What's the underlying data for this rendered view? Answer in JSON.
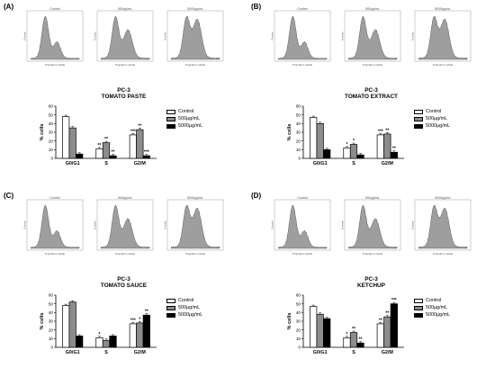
{
  "panels": [
    {
      "letter": "(A)",
      "title_line1": "PC-3",
      "title_line2": "TOMATO PASTE",
      "hist_labels": [
        "Control",
        "500µg/mL",
        "5000µg/mL"
      ],
      "hist_axis_y": "Events",
      "hist_axis_x": "Propidium iodide"
    },
    {
      "letter": "(B)",
      "title_line1": "PC-3",
      "title_line2": "TOMATO EXTRACT",
      "hist_labels": [
        "Control",
        "500µg/mL",
        "5000µg/mL"
      ],
      "hist_axis_y": "Events",
      "hist_axis_x": "Propidium iodide"
    },
    {
      "letter": "(C)",
      "title_line1": "PC-3",
      "title_line2": "TOMATO SAUCE",
      "hist_labels": [
        "Control",
        "500µg/mL",
        "5000µg/mL"
      ],
      "hist_axis_y": "Events",
      "hist_axis_x": "Propidium iodide"
    },
    {
      "letter": "(D)",
      "title_line1": "PC-3",
      "title_line2": "KETCHUP",
      "hist_labels": [
        "Control",
        "500µg/mL",
        "5000µg/mL"
      ],
      "hist_axis_y": "Events",
      "hist_axis_x": "Propidium iodide"
    }
  ],
  "legend": [
    "Control",
    "500µg/mL",
    "5000µg/mL"
  ],
  "colors": {
    "control": "#ffffff",
    "mid": "#8c8c8c",
    "high": "#000000",
    "hist_fill": "#9e9e9e"
  },
  "chart_data": [
    {
      "type": "bar",
      "title": "PC-3 TOMATO PASTE",
      "categories": [
        "G0/G1",
        "S",
        "G2/M"
      ],
      "ylabel": "% cells",
      "ylim": [
        0,
        60
      ],
      "yticks": [
        0,
        10,
        20,
        30,
        40,
        50,
        60
      ],
      "series": [
        {
          "name": "Control",
          "values": [
            48,
            11,
            27
          ]
        },
        {
          "name": "500µg/mL",
          "values": [
            35,
            18,
            33
          ]
        },
        {
          "name": "5000µg/mL",
          "values": [
            5,
            3,
            3
          ]
        }
      ],
      "annotations": [
        [
          "",
          "**",
          "***"
        ],
        [
          "",
          "**",
          "**"
        ],
        [
          "",
          "**",
          "***"
        ]
      ]
    },
    {
      "type": "bar",
      "title": "PC-3 TOMATO EXTRACT",
      "categories": [
        "G0/G1",
        "S",
        "G2/M"
      ],
      "ylabel": "% cells",
      "ylim": [
        0,
        60
      ],
      "yticks": [
        0,
        10,
        20,
        30,
        40,
        50,
        60
      ],
      "series": [
        {
          "name": "Control",
          "values": [
            47,
            12,
            27
          ]
        },
        {
          "name": "500µg/mL",
          "values": [
            40,
            16,
            28
          ]
        },
        {
          "name": "5000µg/mL",
          "values": [
            10,
            4,
            7
          ]
        }
      ],
      "annotations": [
        [
          "",
          "*",
          "***"
        ],
        [
          "",
          "*",
          "**"
        ],
        [
          "",
          "",
          "**"
        ]
      ]
    },
    {
      "type": "bar",
      "title": "PC-3 TOMATO SAUCE",
      "categories": [
        "G0/G1",
        "S",
        "G2/M"
      ],
      "ylabel": "% cells",
      "ylim": [
        0,
        60
      ],
      "yticks": [
        0,
        10,
        20,
        30,
        40,
        50,
        60
      ],
      "series": [
        {
          "name": "Control",
          "values": [
            48,
            11,
            27
          ]
        },
        {
          "name": "500µg/mL",
          "values": [
            52,
            8,
            28
          ]
        },
        {
          "name": "5000µg/mL",
          "values": [
            13,
            13,
            37
          ]
        }
      ],
      "annotations": [
        [
          "",
          "*",
          "***"
        ],
        [
          "",
          "",
          "*"
        ],
        [
          "",
          "",
          "**"
        ]
      ]
    },
    {
      "type": "bar",
      "title": "PC-3 KETCHUP",
      "categories": [
        "G0/G1",
        "S",
        "G2/M"
      ],
      "ylabel": "% cells",
      "ylim": [
        0,
        60
      ],
      "yticks": [
        0,
        10,
        20,
        30,
        40,
        50,
        60
      ],
      "series": [
        {
          "name": "Control",
          "values": [
            47,
            11,
            27
          ]
        },
        {
          "name": "500µg/mL",
          "values": [
            38,
            17,
            35
          ]
        },
        {
          "name": "5000µg/mL",
          "values": [
            33,
            5,
            50
          ]
        }
      ],
      "annotations": [
        [
          "",
          "*",
          "**"
        ],
        [
          "",
          "**",
          "**"
        ],
        [
          "",
          "**",
          "***"
        ]
      ]
    }
  ]
}
